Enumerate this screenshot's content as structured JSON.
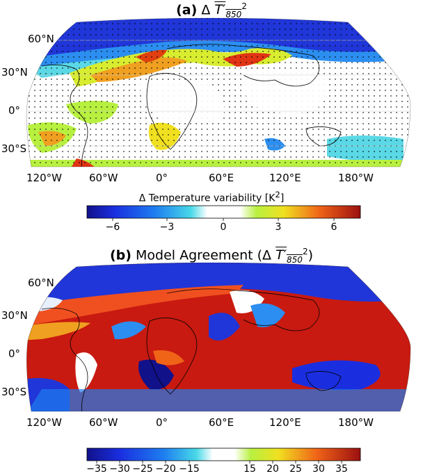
{
  "panel_a": {
    "title_bold": "(a)",
    "title_rest": "Δ",
    "symbol": "T′",
    "subscript": "850",
    "superscript": "2",
    "lat_labels": [
      "60°N",
      "30°N",
      "0°",
      "30°S"
    ],
    "lon_labels": [
      "120°W",
      "60°W",
      "0°",
      "60°E",
      "120°E",
      "180°W"
    ],
    "colorbar_label": "Δ Temperature variability [K",
    "colorbar_label_sup": "2",
    "colorbar_label_end": "]",
    "colorbar_ticks": [
      "−6",
      "−3",
      "0",
      "3",
      "6"
    ]
  },
  "panel_b": {
    "title_bold": "(b)",
    "title_rest": "Model Agreement (Δ",
    "symbol": "T′",
    "subscript": "850",
    "superscript": "2",
    "title_end": ")",
    "lat_labels": [
      "60°N",
      "30°N",
      "0°",
      "30°S"
    ],
    "lon_labels": [
      "120°W",
      "60°W",
      "0°",
      "60°E",
      "120°E",
      "180°W"
    ],
    "colorbar_ticks": [
      "−35",
      "−30",
      "−25",
      "−20",
      "−15",
      "15",
      "20",
      "25",
      "30",
      "35"
    ]
  },
  "colors": {
    "ocean_b": "#c81a10",
    "dark_blue": "#1a2fd9",
    "land_line": "#000000"
  }
}
